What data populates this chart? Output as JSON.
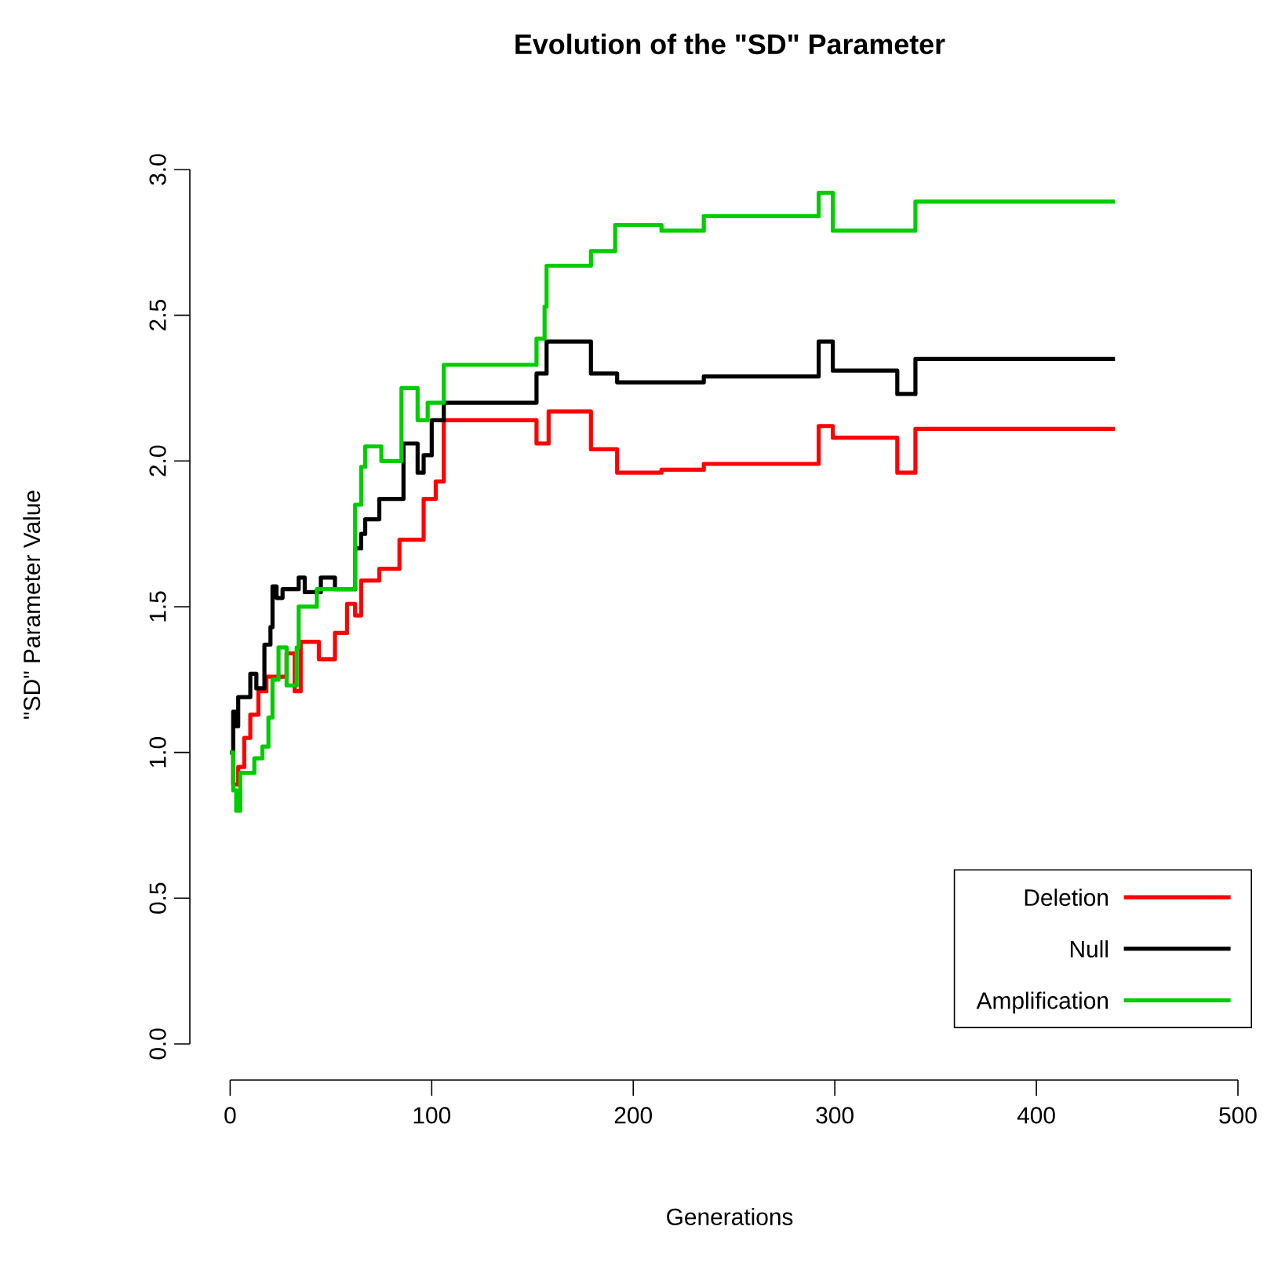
{
  "chart_data": {
    "type": "step",
    "title": "Evolution of the \"SD\" Parameter",
    "xlabel": "Generations",
    "ylabel": "\"SD\" Parameter Value",
    "xlim": [
      0,
      500
    ],
    "ylim": [
      0,
      3
    ],
    "xticks": [
      0,
      100,
      200,
      300,
      400,
      500
    ],
    "yticks": [
      {
        "value": 0,
        "label": "0.0"
      },
      {
        "value": 0.5,
        "label": "0.5"
      },
      {
        "value": 1,
        "label": "1.0"
      },
      {
        "value": 1.5,
        "label": "1.5"
      },
      {
        "value": 2,
        "label": "2.0"
      },
      {
        "value": 2.5,
        "label": "2.5"
      },
      {
        "value": 3,
        "label": "3.0"
      }
    ],
    "legend": "bottom right",
    "grid": false,
    "line_style": "solid",
    "series": [
      {
        "name": "Deletion",
        "color": "#ff0000",
        "x": [
          0,
          1.5,
          4,
          7,
          10,
          14,
          18,
          28,
          32,
          35,
          44,
          52,
          58,
          62,
          65,
          74,
          84,
          96,
          102,
          106,
          152,
          158,
          179,
          192,
          214,
          235,
          292,
          299,
          331,
          340,
          439
        ],
        "values": [
          1.0,
          0.89,
          0.95,
          1.05,
          1.13,
          1.21,
          1.26,
          1.34,
          1.21,
          1.38,
          1.32,
          1.41,
          1.51,
          1.47,
          1.59,
          1.63,
          1.73,
          1.87,
          1.93,
          2.14,
          2.06,
          2.17,
          2.04,
          1.96,
          1.97,
          1.99,
          2.12,
          2.08,
          1.96,
          2.11,
          2.11
        ]
      },
      {
        "name": "Null",
        "color": "#000000",
        "x": [
          0,
          1.5,
          3,
          4,
          10,
          13,
          17,
          20,
          21,
          23,
          26,
          34,
          37,
          45,
          52,
          62,
          65,
          67,
          74,
          86,
          93,
          96,
          100,
          106,
          152,
          157,
          179,
          192,
          214,
          235,
          292,
          299,
          331,
          340,
          439
        ],
        "values": [
          1.0,
          1.14,
          1.09,
          1.19,
          1.27,
          1.22,
          1.37,
          1.43,
          1.57,
          1.53,
          1.56,
          1.6,
          1.55,
          1.6,
          1.56,
          1.7,
          1.75,
          1.8,
          1.87,
          2.06,
          1.96,
          2.02,
          2.14,
          2.2,
          2.3,
          2.41,
          2.3,
          2.27,
          2.27,
          2.29,
          2.41,
          2.31,
          2.23,
          2.35,
          2.35
        ]
      },
      {
        "name": "Amplification",
        "color": "#00cd00",
        "x": [
          0,
          1.5,
          3,
          5,
          12,
          16,
          19,
          21,
          24,
          28,
          33,
          34,
          43,
          62,
          65,
          67,
          75,
          85,
          93,
          98,
          106,
          152,
          156,
          157,
          179,
          191,
          214,
          235,
          292,
          299,
          340,
          439
        ],
        "values": [
          1.0,
          0.87,
          0.8,
          0.93,
          0.98,
          1.02,
          1.12,
          1.25,
          1.36,
          1.23,
          1.36,
          1.5,
          1.56,
          1.85,
          1.98,
          2.05,
          2.0,
          2.25,
          2.14,
          2.2,
          2.33,
          2.42,
          2.53,
          2.67,
          2.72,
          2.81,
          2.79,
          2.84,
          2.92,
          2.79,
          2.89,
          2.89
        ]
      }
    ]
  }
}
